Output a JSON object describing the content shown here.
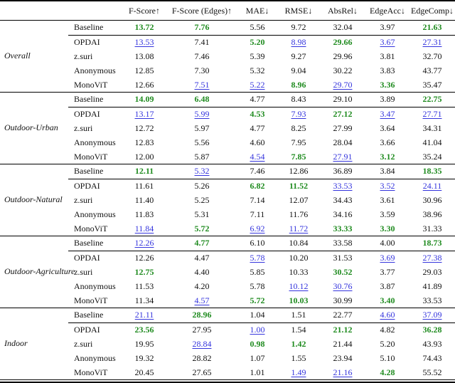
{
  "styles": {
    "best_color": "#1f8b1f",
    "second_color": "#3434dd",
    "rule_color": "#000000"
  },
  "table": {
    "columns": [
      "F-Score↑",
      "F-Score (Edges)↑",
      "MAE↓",
      "RMSE↓",
      "AbsRel↓",
      "EdgeAcc↓",
      "EdgeComp↓"
    ],
    "highlight_legend": {
      "best": "green bold",
      "second_best": "blue underline"
    },
    "groups": [
      {
        "name": "Overall",
        "rows": [
          {
            "method": "Baseline",
            "cells": [
              [
                "13.72",
                "best"
              ],
              [
                "7.76",
                "best"
              ],
              [
                "5.56",
                ""
              ],
              [
                "9.72",
                ""
              ],
              [
                "32.04",
                ""
              ],
              [
                "3.97",
                ""
              ],
              [
                "21.63",
                "best"
              ]
            ]
          },
          {
            "method": "OPDAI",
            "cells": [
              [
                "13.53",
                "second"
              ],
              [
                "7.41",
                ""
              ],
              [
                "5.20",
                "best"
              ],
              [
                "8.98",
                "second"
              ],
              [
                "29.66",
                "best"
              ],
              [
                "3.67",
                "second"
              ],
              [
                "27.31",
                "second"
              ]
            ]
          },
          {
            "method": "z.suri",
            "cells": [
              [
                "13.08",
                ""
              ],
              [
                "7.46",
                ""
              ],
              [
                "5.39",
                ""
              ],
              [
                "9.27",
                ""
              ],
              [
                "29.96",
                ""
              ],
              [
                "3.81",
                ""
              ],
              [
                "32.70",
                ""
              ]
            ]
          },
          {
            "method": "Anonymous",
            "cells": [
              [
                "12.85",
                ""
              ],
              [
                "7.30",
                ""
              ],
              [
                "5.32",
                ""
              ],
              [
                "9.04",
                ""
              ],
              [
                "30.22",
                ""
              ],
              [
                "3.83",
                ""
              ],
              [
                "43.77",
                ""
              ]
            ]
          },
          {
            "method": "MonoViT",
            "cells": [
              [
                "12.66",
                ""
              ],
              [
                "7.51",
                "second"
              ],
              [
                "5.22",
                "second"
              ],
              [
                "8.96",
                "best"
              ],
              [
                "29.70",
                "second"
              ],
              [
                "3.36",
                "best"
              ],
              [
                "35.47",
                ""
              ]
            ]
          }
        ]
      },
      {
        "name": "Outdoor-Urban",
        "rows": [
          {
            "method": "Baseline",
            "cells": [
              [
                "14.09",
                "best"
              ],
              [
                "6.48",
                "best"
              ],
              [
                "4.77",
                ""
              ],
              [
                "8.43",
                ""
              ],
              [
                "29.10",
                ""
              ],
              [
                "3.89",
                ""
              ],
              [
                "22.75",
                "best"
              ]
            ]
          },
          {
            "method": "OPDAI",
            "cells": [
              [
                "13.17",
                "second"
              ],
              [
                "5.99",
                "second"
              ],
              [
                "4.53",
                "best"
              ],
              [
                "7.93",
                "second"
              ],
              [
                "27.12",
                "best"
              ],
              [
                "3.47",
                "second"
              ],
              [
                "27.71",
                "second"
              ]
            ]
          },
          {
            "method": "z.suri",
            "cells": [
              [
                "12.72",
                ""
              ],
              [
                "5.97",
                ""
              ],
              [
                "4.77",
                ""
              ],
              [
                "8.25",
                ""
              ],
              [
                "27.99",
                ""
              ],
              [
                "3.64",
                ""
              ],
              [
                "34.31",
                ""
              ]
            ]
          },
          {
            "method": "Anonymous",
            "cells": [
              [
                "12.83",
                ""
              ],
              [
                "5.56",
                ""
              ],
              [
                "4.60",
                ""
              ],
              [
                "7.95",
                ""
              ],
              [
                "28.04",
                ""
              ],
              [
                "3.66",
                ""
              ],
              [
                "41.04",
                ""
              ]
            ]
          },
          {
            "method": "MonoViT",
            "cells": [
              [
                "12.00",
                ""
              ],
              [
                "5.87",
                ""
              ],
              [
                "4.54",
                "second"
              ],
              [
                "7.85",
                "best"
              ],
              [
                "27.91",
                "second"
              ],
              [
                "3.12",
                "best"
              ],
              [
                "35.24",
                ""
              ]
            ]
          }
        ]
      },
      {
        "name": "Outdoor-Natural",
        "rows": [
          {
            "method": "Baseline",
            "cells": [
              [
                "12.11",
                "best"
              ],
              [
                "5.32",
                "second"
              ],
              [
                "7.46",
                ""
              ],
              [
                "12.86",
                ""
              ],
              [
                "36.89",
                ""
              ],
              [
                "3.84",
                ""
              ],
              [
                "18.35",
                "best"
              ]
            ]
          },
          {
            "method": "OPDAI",
            "cells": [
              [
                "11.61",
                ""
              ],
              [
                "5.26",
                ""
              ],
              [
                "6.82",
                "best"
              ],
              [
                "11.52",
                "best"
              ],
              [
                "33.53",
                "second"
              ],
              [
                "3.52",
                "second"
              ],
              [
                "24.11",
                "second"
              ]
            ]
          },
          {
            "method": "z.suri",
            "cells": [
              [
                "11.40",
                ""
              ],
              [
                "5.25",
                ""
              ],
              [
                "7.14",
                ""
              ],
              [
                "12.07",
                ""
              ],
              [
                "34.43",
                ""
              ],
              [
                "3.61",
                ""
              ],
              [
                "30.96",
                ""
              ]
            ]
          },
          {
            "method": "Anonymous",
            "cells": [
              [
                "11.83",
                ""
              ],
              [
                "5.31",
                ""
              ],
              [
                "7.11",
                ""
              ],
              [
                "11.76",
                ""
              ],
              [
                "34.16",
                ""
              ],
              [
                "3.59",
                ""
              ],
              [
                "38.96",
                ""
              ]
            ]
          },
          {
            "method": "MonoViT",
            "cells": [
              [
                "11.84",
                "second"
              ],
              [
                "5.72",
                "best"
              ],
              [
                "6.92",
                "second"
              ],
              [
                "11.72",
                "second"
              ],
              [
                "33.33",
                "best"
              ],
              [
                "3.30",
                "best"
              ],
              [
                "31.33",
                ""
              ]
            ]
          }
        ]
      },
      {
        "name": "Outdoor-Agriculture",
        "rows": [
          {
            "method": "Baseline",
            "cells": [
              [
                "12.26",
                "second"
              ],
              [
                "4.77",
                "best"
              ],
              [
                "6.10",
                ""
              ],
              [
                "10.84",
                ""
              ],
              [
                "33.58",
                ""
              ],
              [
                "4.00",
                ""
              ],
              [
                "18.73",
                "best"
              ]
            ]
          },
          {
            "method": "OPDAI",
            "cells": [
              [
                "12.26",
                ""
              ],
              [
                "4.47",
                ""
              ],
              [
                "5.78",
                "second"
              ],
              [
                "10.20",
                ""
              ],
              [
                "31.53",
                ""
              ],
              [
                "3.69",
                "second"
              ],
              [
                "27.38",
                "second"
              ]
            ]
          },
          {
            "method": "z.suri",
            "cells": [
              [
                "12.75",
                "best"
              ],
              [
                "4.40",
                ""
              ],
              [
                "5.85",
                ""
              ],
              [
                "10.33",
                ""
              ],
              [
                "30.52",
                "best"
              ],
              [
                "3.77",
                ""
              ],
              [
                "29.03",
                ""
              ]
            ]
          },
          {
            "method": "Anonymous",
            "cells": [
              [
                "11.53",
                ""
              ],
              [
                "4.20",
                ""
              ],
              [
                "5.78",
                ""
              ],
              [
                "10.12",
                "second"
              ],
              [
                "30.76",
                "second"
              ],
              [
                "3.87",
                ""
              ],
              [
                "41.89",
                ""
              ]
            ]
          },
          {
            "method": "MonoViT",
            "cells": [
              [
                "11.34",
                ""
              ],
              [
                "4.57",
                "second"
              ],
              [
                "5.72",
                "best"
              ],
              [
                "10.03",
                "best"
              ],
              [
                "30.99",
                ""
              ],
              [
                "3.40",
                "best"
              ],
              [
                "33.53",
                ""
              ]
            ]
          }
        ]
      },
      {
        "name": "Indoor",
        "rows": [
          {
            "method": "Baseline",
            "cells": [
              [
                "21.11",
                "second"
              ],
              [
                "28.96",
                "best"
              ],
              [
                "1.04",
                ""
              ],
              [
                "1.51",
                ""
              ],
              [
                "22.77",
                ""
              ],
              [
                "4.60",
                "second"
              ],
              [
                "37.09",
                "second"
              ]
            ]
          },
          {
            "method": "OPDAI",
            "cells": [
              [
                "23.56",
                "best"
              ],
              [
                "27.95",
                ""
              ],
              [
                "1.00",
                "second"
              ],
              [
                "1.54",
                ""
              ],
              [
                "21.12",
                "best"
              ],
              [
                "4.82",
                ""
              ],
              [
                "36.28",
                "best"
              ]
            ]
          },
          {
            "method": "z.suri",
            "cells": [
              [
                "19.95",
                ""
              ],
              [
                "28.84",
                "second"
              ],
              [
                "0.98",
                "best"
              ],
              [
                "1.42",
                "best"
              ],
              [
                "21.44",
                ""
              ],
              [
                "5.20",
                ""
              ],
              [
                "43.93",
                ""
              ]
            ]
          },
          {
            "method": "Anonymous",
            "cells": [
              [
                "19.32",
                ""
              ],
              [
                "28.82",
                ""
              ],
              [
                "1.07",
                ""
              ],
              [
                "1.55",
                ""
              ],
              [
                "23.94",
                ""
              ],
              [
                "5.10",
                ""
              ],
              [
                "74.43",
                ""
              ]
            ]
          },
          {
            "method": "MonoViT",
            "cells": [
              [
                "20.45",
                ""
              ],
              [
                "27.65",
                ""
              ],
              [
                "1.01",
                ""
              ],
              [
                "1.49",
                "second"
              ],
              [
                "21.16",
                "second"
              ],
              [
                "4.28",
                "best"
              ],
              [
                "55.52",
                ""
              ]
            ]
          }
        ]
      }
    ]
  }
}
